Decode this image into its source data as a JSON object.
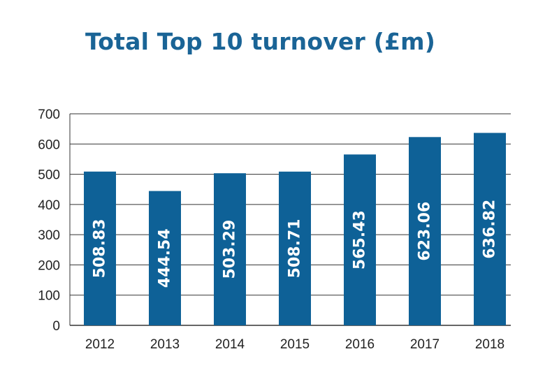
{
  "chart_data": {
    "type": "bar",
    "title": "Total Top 10 turnover (£m)",
    "xlabel": "",
    "ylabel": "",
    "categories": [
      "2012",
      "2013",
      "2014",
      "2015",
      "2016",
      "2017",
      "2018"
    ],
    "values": [
      508.83,
      444.54,
      503.29,
      508.71,
      565.43,
      623.06,
      636.82
    ],
    "data_labels": [
      "508.83",
      "444.54",
      "503.29",
      "508.71",
      "565.43",
      "623.06",
      "636.82"
    ],
    "ylim": [
      0,
      700
    ],
    "yticks": [
      0,
      100,
      200,
      300,
      400,
      500,
      600,
      700
    ],
    "grid": true,
    "legend": "none",
    "colors": {
      "bar": "#0e6197",
      "title": "#1a6496",
      "grid": "#333333",
      "bar_label": "#ffffff"
    }
  }
}
